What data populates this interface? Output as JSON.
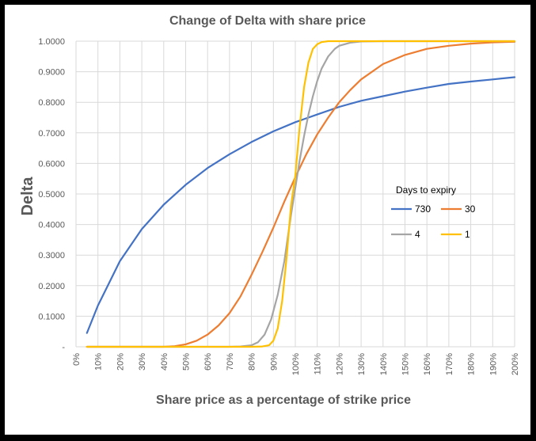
{
  "chart_data": {
    "type": "line",
    "title": "Change of Delta with share price",
    "xlabel": "Share price as a percentage of strike price",
    "ylabel": "Delta",
    "x_ticks": [
      "0%",
      "10%",
      "20%",
      "30%",
      "40%",
      "50%",
      "60%",
      "70%",
      "80%",
      "90%",
      "100%",
      "110%",
      "120%",
      "130%",
      "140%",
      "150%",
      "160%",
      "170%",
      "180%",
      "190%",
      "200%"
    ],
    "y_ticks": [
      "-",
      "0.1000",
      "0.2000",
      "0.3000",
      "0.4000",
      "0.5000",
      "0.6000",
      "0.7000",
      "0.8000",
      "0.9000",
      "1.0000"
    ],
    "xlim": [
      0,
      200
    ],
    "ylim": [
      0,
      1
    ],
    "grid": true,
    "legend": {
      "title": "Days to expiry",
      "placement": "right"
    },
    "series": [
      {
        "name": "730",
        "color": "#4472C4",
        "x": [
          5,
          10,
          20,
          30,
          40,
          50,
          60,
          70,
          80,
          90,
          100,
          110,
          120,
          130,
          140,
          150,
          160,
          170,
          180,
          190,
          200
        ],
        "y": [
          0.045,
          0.135,
          0.28,
          0.385,
          0.465,
          0.53,
          0.585,
          0.63,
          0.67,
          0.705,
          0.735,
          0.76,
          0.785,
          0.805,
          0.82,
          0.835,
          0.848,
          0.86,
          0.868,
          0.875,
          0.882
        ]
      },
      {
        "name": "30",
        "color": "#ED7D31",
        "x": [
          5,
          20,
          40,
          45,
          50,
          55,
          60,
          65,
          70,
          75,
          80,
          85,
          90,
          95,
          100,
          105,
          110,
          115,
          120,
          125,
          130,
          140,
          150,
          160,
          170,
          180,
          190,
          200
        ],
        "y": [
          0,
          0,
          0,
          0.002,
          0.008,
          0.02,
          0.04,
          0.07,
          0.11,
          0.165,
          0.235,
          0.31,
          0.39,
          0.475,
          0.555,
          0.63,
          0.695,
          0.75,
          0.8,
          0.84,
          0.875,
          0.925,
          0.955,
          0.975,
          0.985,
          0.992,
          0.996,
          0.998
        ]
      },
      {
        "name": "4",
        "color": "#A5A5A5",
        "x": [
          5,
          40,
          60,
          70,
          75,
          80,
          83,
          86,
          89,
          92,
          95,
          98,
          100,
          102,
          104,
          106,
          108,
          110,
          112,
          115,
          118,
          120,
          125,
          130,
          140,
          200
        ],
        "y": [
          0,
          0,
          0,
          0,
          0.001,
          0.005,
          0.015,
          0.04,
          0.09,
          0.17,
          0.28,
          0.43,
          0.52,
          0.61,
          0.69,
          0.76,
          0.82,
          0.87,
          0.91,
          0.95,
          0.975,
          0.985,
          0.995,
          0.999,
          1,
          1
        ]
      },
      {
        "name": "1",
        "color": "#FFC000",
        "x": [
          5,
          40,
          60,
          70,
          80,
          85,
          88,
          90,
          92,
          94,
          96,
          98,
          100,
          102,
          104,
          106,
          108,
          110,
          112,
          115,
          120,
          200
        ],
        "y": [
          0,
          0,
          0,
          0,
          0,
          0.001,
          0.005,
          0.02,
          0.06,
          0.15,
          0.29,
          0.46,
          0.56,
          0.72,
          0.85,
          0.93,
          0.975,
          0.99,
          0.997,
          1,
          1,
          1
        ]
      }
    ]
  }
}
